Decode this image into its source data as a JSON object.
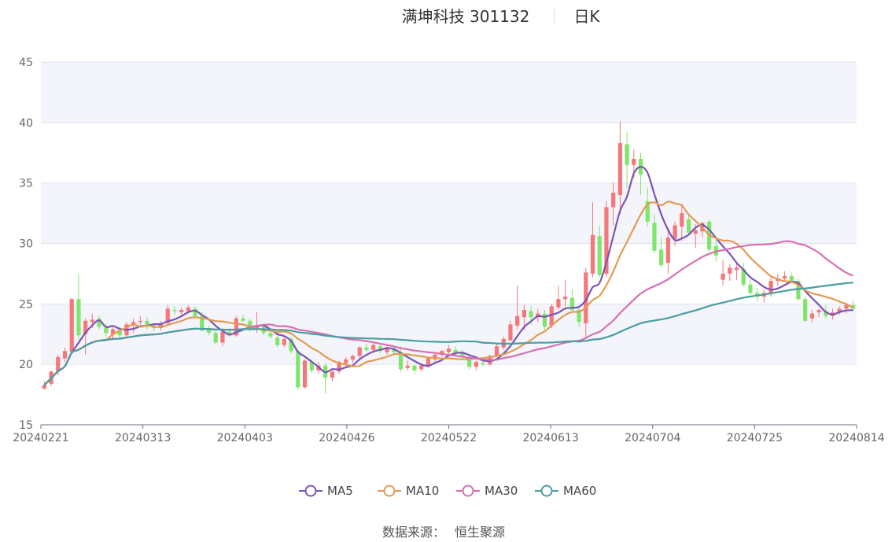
{
  "title": {
    "stock": "满坤科技 301132",
    "period": "日K"
  },
  "source": {
    "label": "数据来源：",
    "value": "恒生聚源"
  },
  "colors": {
    "up": "#f4777a",
    "down": "#7fe66b",
    "MA5": "#7b55b5",
    "MA10": "#e59a52",
    "MA30": "#d86fb3",
    "MA60": "#4a9ea0",
    "band": "#f3f5fb",
    "grid": "#dfe3ee"
  },
  "chart_data": {
    "type": "candlestick",
    "title": "满坤科技 301132",
    "ylim": [
      15,
      45
    ],
    "yticks": [
      15,
      20,
      25,
      30,
      35,
      40,
      45
    ],
    "xticks": [
      "20240221",
      "20240313",
      "20240403",
      "20240426",
      "20240522",
      "20240613",
      "20240704",
      "20240725",
      "20240814"
    ],
    "legend": [
      "MA5",
      "MA10",
      "MA30",
      "MA60"
    ],
    "legend_position": "bottom",
    "ohlc": [
      [
        18.0,
        18.6,
        17.9,
        18.3
      ],
      [
        18.4,
        19.5,
        18.2,
        19.4
      ],
      [
        19.4,
        20.8,
        19.1,
        20.6
      ],
      [
        20.5,
        21.4,
        20.2,
        21.1
      ],
      [
        21.0,
        25.5,
        20.9,
        25.4
      ],
      [
        25.4,
        27.4,
        22.0,
        22.4
      ],
      [
        22.5,
        23.8,
        20.8,
        23.6
      ],
      [
        23.5,
        24.2,
        23.0,
        23.7
      ],
      [
        23.8,
        24.0,
        22.9,
        23.1
      ],
      [
        23.0,
        23.4,
        22.3,
        22.6
      ],
      [
        22.5,
        23.2,
        22.0,
        22.9
      ],
      [
        22.8,
        23.1,
        22.1,
        22.4
      ],
      [
        22.4,
        23.5,
        22.2,
        23.3
      ],
      [
        23.2,
        23.8,
        22.6,
        23.5
      ],
      [
        23.5,
        24.0,
        23.2,
        23.6
      ],
      [
        23.6,
        23.9,
        22.9,
        23.2
      ],
      [
        23.1,
        23.4,
        22.7,
        23.0
      ],
      [
        23.0,
        23.6,
        22.8,
        23.4
      ],
      [
        23.4,
        24.9,
        23.2,
        24.6
      ],
      [
        24.5,
        24.8,
        24.1,
        24.4
      ],
      [
        24.3,
        24.7,
        23.9,
        24.5
      ],
      [
        24.4,
        24.9,
        24.2,
        24.7
      ],
      [
        24.6,
        24.8,
        23.9,
        24.0
      ],
      [
        24.0,
        24.3,
        22.7,
        22.8
      ],
      [
        22.9,
        23.2,
        22.4,
        22.6
      ],
      [
        22.6,
        22.8,
        21.7,
        21.8
      ],
      [
        21.8,
        22.8,
        21.5,
        22.7
      ],
      [
        22.7,
        23.0,
        22.3,
        22.4
      ],
      [
        22.4,
        24.0,
        22.3,
        23.8
      ],
      [
        23.8,
        24.1,
        23.5,
        23.6
      ],
      [
        23.6,
        23.8,
        22.7,
        22.9
      ],
      [
        22.9,
        24.3,
        22.6,
        23.1
      ],
      [
        23.1,
        23.4,
        22.4,
        22.6
      ],
      [
        22.6,
        22.8,
        22.1,
        22.3
      ],
      [
        22.2,
        22.6,
        21.4,
        21.6
      ],
      [
        21.6,
        22.3,
        21.4,
        22.1
      ],
      [
        22.1,
        22.3,
        20.9,
        21.1
      ],
      [
        21.1,
        21.2,
        17.9,
        18.1
      ],
      [
        18.1,
        20.4,
        18.0,
        20.3
      ],
      [
        20.2,
        20.4,
        19.3,
        19.5
      ],
      [
        19.5,
        20.2,
        19.2,
        19.9
      ],
      [
        19.9,
        20.1,
        17.6,
        18.9
      ],
      [
        18.9,
        19.6,
        18.6,
        19.4
      ],
      [
        19.4,
        20.3,
        19.2,
        20.2
      ],
      [
        20.1,
        20.6,
        19.8,
        20.4
      ],
      [
        20.4,
        20.8,
        20.1,
        20.7
      ],
      [
        20.7,
        21.5,
        20.5,
        21.4
      ],
      [
        21.4,
        21.7,
        21.0,
        21.2
      ],
      [
        21.2,
        21.8,
        20.9,
        21.6
      ],
      [
        21.5,
        21.7,
        20.9,
        21.1
      ],
      [
        21.0,
        21.6,
        20.8,
        21.4
      ],
      [
        21.3,
        21.5,
        20.9,
        21.0
      ],
      [
        21.0,
        21.5,
        19.4,
        19.6
      ],
      [
        19.7,
        20.3,
        19.5,
        19.9
      ],
      [
        19.9,
        20.0,
        19.2,
        19.5
      ],
      [
        19.6,
        20.1,
        19.4,
        19.9
      ],
      [
        19.8,
        20.6,
        19.7,
        20.5
      ],
      [
        20.4,
        20.9,
        20.2,
        20.8
      ],
      [
        20.8,
        21.2,
        20.6,
        21.1
      ],
      [
        21.0,
        21.6,
        20.8,
        21.3
      ],
      [
        21.2,
        21.5,
        20.7,
        20.9
      ],
      [
        20.9,
        21.2,
        20.5,
        20.7
      ],
      [
        20.6,
        20.9,
        19.6,
        19.8
      ],
      [
        19.8,
        20.3,
        19.5,
        20.2
      ],
      [
        20.1,
        20.4,
        19.8,
        20.0
      ],
      [
        20.0,
        20.8,
        19.9,
        20.7
      ],
      [
        20.7,
        21.7,
        20.6,
        21.5
      ],
      [
        21.4,
        22.3,
        21.2,
        22.1
      ],
      [
        22.0,
        23.6,
        21.9,
        23.3
      ],
      [
        23.2,
        26.5,
        22.9,
        24.0
      ],
      [
        23.9,
        24.9,
        22.8,
        24.5
      ],
      [
        24.4,
        24.8,
        23.3,
        23.9
      ],
      [
        23.9,
        24.6,
        23.5,
        24.2
      ],
      [
        24.2,
        24.5,
        22.9,
        23.1
      ],
      [
        23.2,
        25.0,
        23.0,
        24.8
      ],
      [
        24.7,
        26.5,
        24.5,
        25.4
      ],
      [
        25.4,
        27.0,
        24.8,
        25.6
      ],
      [
        25.5,
        26.2,
        24.3,
        24.5
      ],
      [
        24.5,
        24.8,
        23.1,
        23.5
      ],
      [
        23.4,
        28.0,
        22.2,
        27.6
      ],
      [
        27.5,
        33.4,
        27.2,
        30.7
      ],
      [
        30.6,
        31.5,
        27.2,
        27.4
      ],
      [
        27.5,
        33.5,
        27.2,
        33.0
      ],
      [
        33.0,
        35.0,
        31.5,
        34.2
      ],
      [
        34.0,
        40.1,
        32.4,
        38.3
      ],
      [
        38.2,
        39.2,
        34.6,
        36.5
      ],
      [
        36.5,
        37.8,
        35.4,
        37.0
      ],
      [
        37.0,
        37.5,
        34.0,
        35.7
      ],
      [
        33.5,
        34.6,
        31.4,
        31.8
      ],
      [
        31.7,
        32.4,
        29.2,
        29.4
      ],
      [
        29.5,
        30.5,
        28.0,
        28.2
      ],
      [
        28.4,
        31.3,
        27.5,
        30.5
      ],
      [
        30.4,
        31.8,
        29.8,
        31.5
      ],
      [
        31.4,
        33.3,
        30.2,
        32.5
      ],
      [
        32.0,
        32.3,
        30.8,
        30.9
      ],
      [
        30.8,
        31.6,
        29.6,
        31.1
      ],
      [
        31.0,
        31.8,
        30.5,
        31.7
      ],
      [
        31.8,
        32.0,
        29.3,
        29.5
      ],
      [
        29.8,
        30.3,
        28.5,
        29.0
      ],
      [
        27.0,
        28.6,
        26.5,
        27.5
      ],
      [
        27.5,
        28.3,
        26.9,
        28.0
      ],
      [
        27.8,
        28.5,
        27.0,
        28.0
      ],
      [
        27.9,
        28.4,
        26.4,
        26.6
      ],
      [
        26.6,
        27.0,
        25.7,
        25.9
      ],
      [
        25.9,
        26.3,
        25.2,
        25.6
      ],
      [
        25.6,
        26.2,
        25.1,
        25.9
      ],
      [
        25.9,
        27.2,
        25.6,
        26.9
      ],
      [
        26.9,
        27.5,
        26.5,
        27.1
      ],
      [
        27.1,
        27.7,
        26.8,
        27.3
      ],
      [
        27.3,
        27.6,
        26.7,
        26.9
      ],
      [
        26.9,
        27.1,
        25.3,
        25.4
      ],
      [
        25.4,
        25.6,
        23.5,
        23.6
      ],
      [
        23.8,
        24.5,
        23.5,
        24.2
      ],
      [
        24.3,
        24.6,
        23.9,
        24.5
      ],
      [
        24.4,
        24.9,
        23.8,
        24.0
      ],
      [
        24.0,
        24.6,
        23.7,
        24.3
      ],
      [
        24.3,
        24.8,
        24.1,
        24.6
      ],
      [
        24.6,
        25.1,
        24.2,
        24.9
      ],
      [
        24.9,
        25.3,
        24.4,
        24.6
      ]
    ]
  }
}
